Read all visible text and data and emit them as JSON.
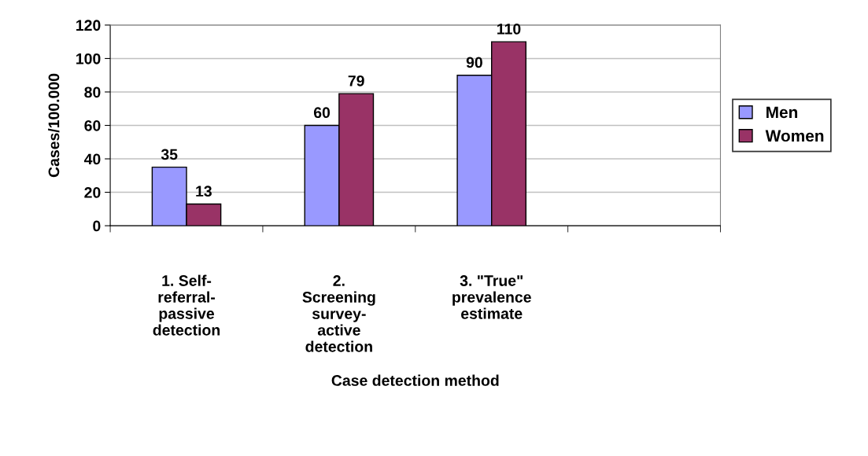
{
  "chart_data": {
    "type": "bar",
    "xlabel": "Case detection method",
    "ylabel": "Cases/100.000",
    "categories": [
      "1. Self-\nreferral-\npassive\ndetection",
      "2.\nScreening\nsurvey-\nactive\ndetection",
      "3. \"True\"\nprevalence\nestimate",
      null
    ],
    "series": [
      {
        "name": "Men",
        "color": "#9999ff",
        "values": [
          35,
          60,
          90,
          null
        ]
      },
      {
        "name": "Women",
        "color": "#993366",
        "values": [
          13,
          79,
          110,
          null
        ]
      }
    ],
    "ylim": [
      0,
      120
    ],
    "yticks": [
      0,
      20,
      40,
      60,
      80,
      100,
      120
    ],
    "grid": "y",
    "legend": "right",
    "data_labels": true
  }
}
